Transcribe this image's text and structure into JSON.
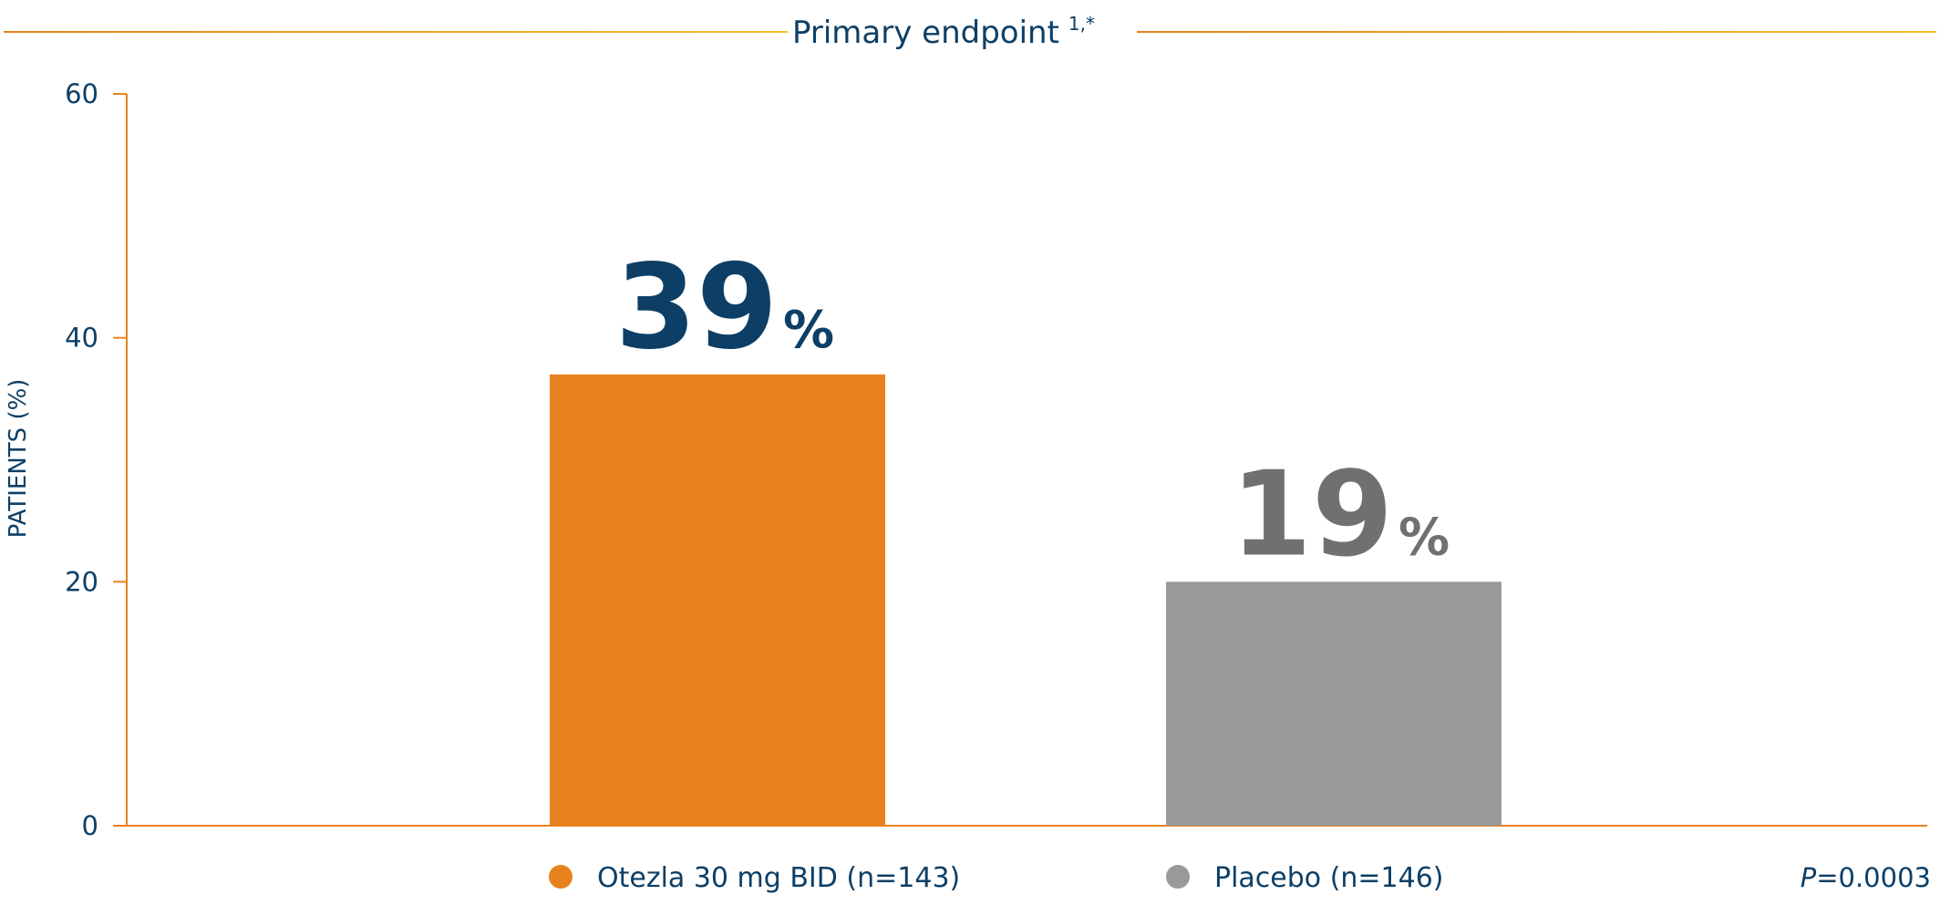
{
  "header": {
    "title": "Primary endpoint",
    "title_superscript": "1,*"
  },
  "chart_data": {
    "type": "bar",
    "categories": [
      "Otezla 30 mg BID (n=143)",
      "Placebo (n=146)"
    ],
    "values": [
      39,
      19
    ],
    "value_labels": [
      {
        "number": "39",
        "unit": "%"
      },
      {
        "number": "19",
        "unit": "%"
      }
    ],
    "ylabel": "PATIENTS (%)",
    "ylim": [
      0,
      60
    ],
    "yticks": [
      "0",
      "20",
      "40",
      "60"
    ],
    "grid": false,
    "legend_position": "bottom",
    "legend": [
      "Otezla 30 mg BID (n=143)",
      "Placebo (n=146)"
    ],
    "annotation": {
      "p_label": "P",
      "p_value": "=0.0003"
    }
  },
  "colors": {
    "otezla_bar": "#E8821E",
    "placebo_bar": "#9A9A9A",
    "otezla_label": "#0D3F66",
    "placebo_label": "#707070",
    "axis": "#E8821E",
    "text": "#0D3F66",
    "header_rule_left": "#E8821E",
    "header_rule_right": "#F2C12E"
  }
}
